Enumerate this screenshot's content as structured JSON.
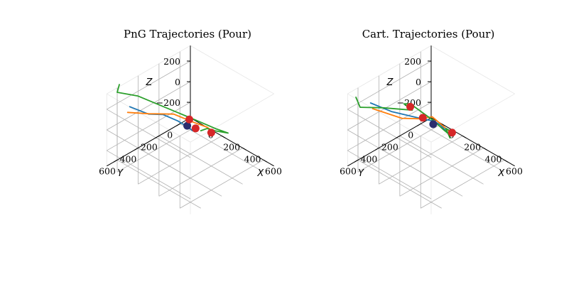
{
  "colors": {
    "series": [
      "#1f77b4",
      "#ff7f0e",
      "#2ca02c"
    ],
    "goal_marker": "#d62728",
    "start_marker": "#2b2d6e"
  },
  "chart_data": [
    {
      "type": "line3d",
      "title": "PnG Trajectories (Pour)",
      "xlabel": "X",
      "ylabel": "Y",
      "zlabel": "Z",
      "x_ticks": [
        "0",
        "200",
        "400",
        "600"
      ],
      "y_ticks": [
        "0",
        "200",
        "400",
        "600"
      ],
      "z_ticks": [
        "200",
        "0",
        "−200"
      ],
      "xlim": [
        -100,
        700
      ],
      "ylim": [
        -100,
        700
      ],
      "zlim": [
        -350,
        350
      ],
      "grid": true,
      "series": [
        {
          "color": "#1f77b4",
          "points": [
            [
              -80,
              500,
              120
            ],
            [
              20,
              420,
              60
            ],
            [
              60,
              320,
              20
            ],
            [
              80,
              200,
              -100
            ],
            [
              90,
              100,
              -220
            ],
            [
              60,
              40,
              -300
            ]
          ]
        },
        {
          "color": "#ff7f0e",
          "points": [
            [
              0,
              600,
              170
            ],
            [
              60,
              460,
              110
            ],
            [
              140,
              300,
              60
            ],
            [
              200,
              180,
              -50
            ],
            [
              220,
              60,
              -160
            ],
            [
              180,
              -20,
              -260
            ],
            [
              130,
              -40,
              -330
            ]
          ]
        },
        {
          "color": "#2ca02c",
          "points": [
            [
              -160,
              520,
              300
            ],
            [
              -80,
              620,
              330
            ],
            [
              0,
              500,
              270
            ],
            [
              380,
              300,
              130
            ],
            [
              460,
              220,
              60
            ],
            [
              480,
              120,
              -30
            ],
            [
              300,
              60,
              -150
            ],
            [
              180,
              20,
              -220
            ],
            [
              100,
              0,
              -300
            ]
          ]
        }
      ],
      "goal_points": [
        [
          20,
          30,
          -220
        ],
        [
          30,
          -20,
          -330
        ],
        [
          140,
          -60,
          -330
        ]
      ],
      "start_points": [
        [
          -40,
          -10,
          -340
        ]
      ]
    },
    {
      "type": "line3d",
      "title": "Cart. Trajectories (Pour)",
      "xlabel": "X",
      "ylabel": "Y",
      "zlabel": "Z",
      "x_ticks": [
        "0",
        "200",
        "400",
        "600"
      ],
      "y_ticks": [
        "0",
        "200",
        "400",
        "600"
      ],
      "z_ticks": [
        "200",
        "0",
        "−200"
      ],
      "xlim": [
        -100,
        700
      ],
      "ylim": [
        -100,
        700
      ],
      "zlim": [
        -350,
        350
      ],
      "grid": true,
      "series": [
        {
          "color": "#1f77b4",
          "points": [
            [
              -60,
              520,
              180
            ],
            [
              60,
              440,
              120
            ],
            [
              260,
              380,
              140
            ],
            [
              300,
              300,
              90
            ],
            [
              200,
              180,
              -40
            ],
            [
              150,
              60,
              -180
            ],
            [
              120,
              -20,
              -300
            ],
            [
              140,
              -60,
              -360
            ]
          ]
        },
        {
          "color": "#ff7f0e",
          "points": [
            [
              40,
              600,
              230
            ],
            [
              200,
              480,
              160
            ],
            [
              260,
              360,
              120
            ],
            [
              230,
              220,
              40
            ],
            [
              180,
              100,
              -120
            ],
            [
              160,
              0,
              -260
            ],
            [
              140,
              -60,
              -330
            ]
          ]
        },
        {
          "color": "#2ca02c",
          "points": [
            [
              -160,
              560,
              200
            ],
            [
              -40,
              640,
              220
            ],
            [
              40,
              500,
              180
            ],
            [
              120,
              380,
              140
            ],
            [
              80,
              260,
              40
            ],
            [
              -80,
              180,
              -40
            ],
            [
              -120,
              80,
              -120
            ],
            [
              60,
              40,
              -200
            ],
            [
              120,
              0,
              -280
            ],
            [
              100,
              -60,
              -360
            ],
            [
              160,
              -40,
              -300
            ],
            [
              220,
              80,
              -160
            ],
            [
              200,
              20,
              -300
            ]
          ]
        }
      ],
      "goal_points": [
        [
          -120,
          80,
          -150
        ],
        [
          -80,
          0,
          -280
        ],
        [
          140,
          -60,
          -330
        ]
      ],
      "start_points": [
        [
          -20,
          -40,
          -330
        ]
      ]
    }
  ]
}
